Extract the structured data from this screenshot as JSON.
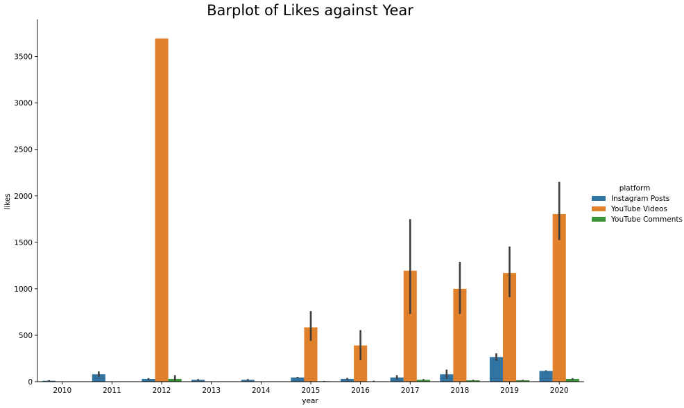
{
  "chart_data": {
    "type": "bar",
    "title": "Barplot of Likes against Year",
    "xlabel": "year",
    "ylabel": "likes",
    "ylim": [
      0,
      3900
    ],
    "yticks": [
      0,
      500,
      1000,
      1500,
      2000,
      2500,
      3000,
      3500
    ],
    "categories": [
      "2010",
      "2011",
      "2012",
      "2013",
      "2014",
      "2015",
      "2016",
      "2017",
      "2018",
      "2019",
      "2020"
    ],
    "legend": {
      "title": "platform",
      "placement": "right"
    },
    "series": [
      {
        "name": "Instagram Posts",
        "color": "#3274a1",
        "values": [
          10,
          80,
          30,
          20,
          20,
          45,
          30,
          45,
          80,
          265,
          115
        ],
        "ci": [
          [
            5,
            15
          ],
          [
            55,
            110
          ],
          [
            22,
            38
          ],
          [
            12,
            28
          ],
          [
            12,
            28
          ],
          [
            38,
            52
          ],
          [
            20,
            40
          ],
          [
            25,
            70
          ],
          [
            35,
            130
          ],
          [
            225,
            305
          ],
          [
            108,
            122
          ]
        ]
      },
      {
        "name": "YouTube Videos",
        "color": "#e1812c",
        "values": [
          0,
          0,
          3695,
          0,
          0,
          585,
          390,
          1195,
          1000,
          1170,
          1805
        ],
        "ci": [
          null,
          null,
          null,
          null,
          null,
          [
            440,
            760
          ],
          [
            230,
            555
          ],
          [
            730,
            1750
          ],
          [
            730,
            1290
          ],
          [
            910,
            1455
          ],
          [
            1525,
            2150
          ]
        ]
      },
      {
        "name": "YouTube Comments",
        "color": "#3a923a",
        "values": [
          0,
          0,
          30,
          0,
          0,
          5,
          3,
          20,
          15,
          15,
          30
        ],
        "ci": [
          null,
          null,
          [
            10,
            70
          ],
          null,
          null,
          [
            2,
            8
          ],
          [
            0,
            10
          ],
          [
            12,
            28
          ],
          [
            10,
            20
          ],
          [
            10,
            20
          ],
          [
            22,
            38
          ]
        ]
      }
    ],
    "grid": false
  }
}
